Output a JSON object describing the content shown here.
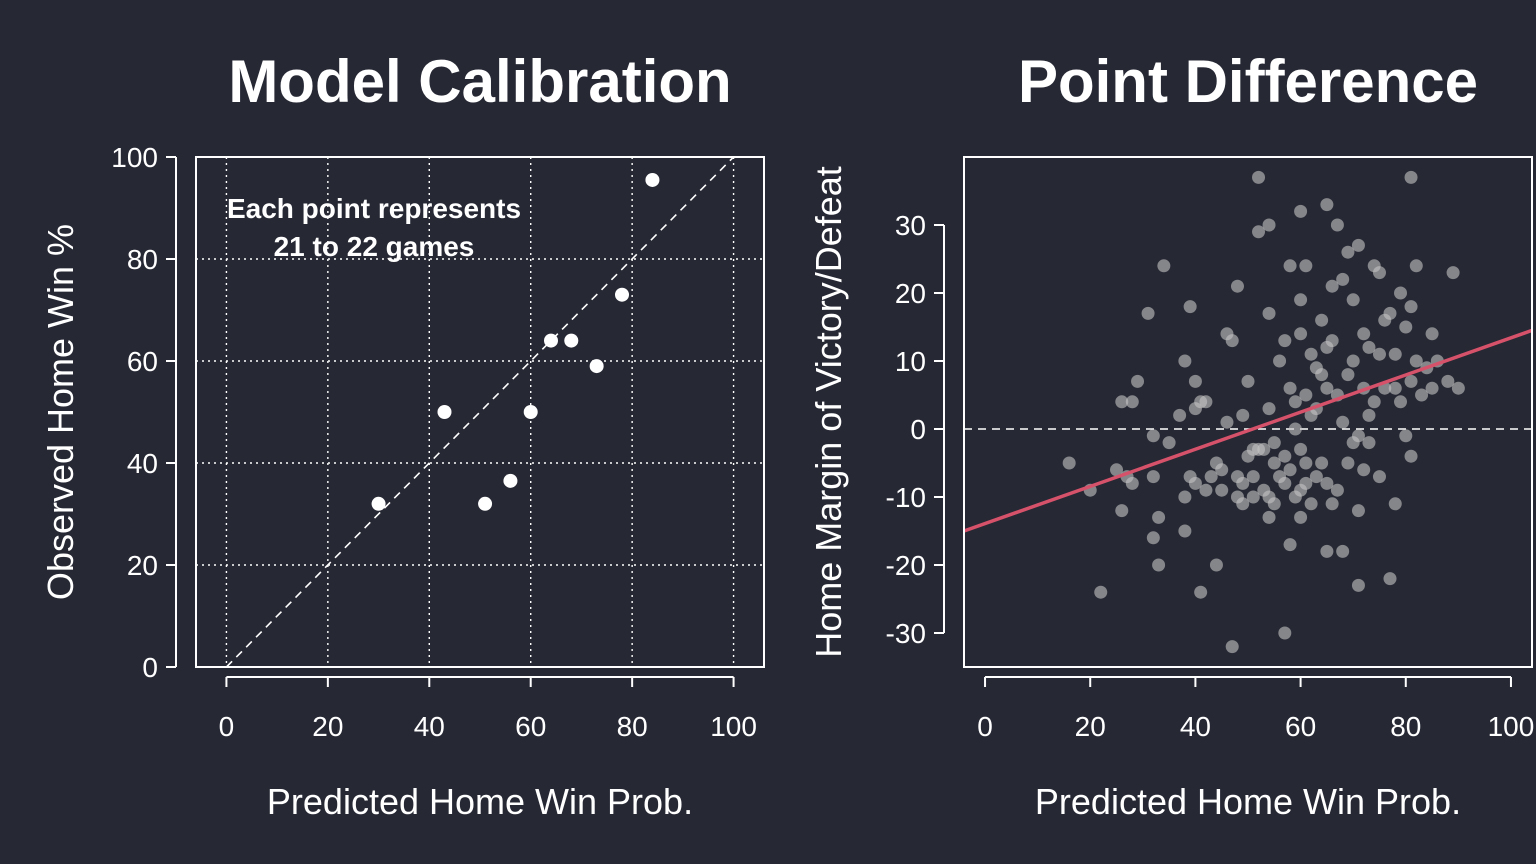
{
  "chart_data": [
    {
      "type": "scatter",
      "title": "Model Calibration",
      "xlabel": "Predicted Home Win Prob.",
      "ylabel": "Observed Home Win %",
      "xlim": [
        -6,
        106
      ],
      "ylim": [
        0,
        100
      ],
      "xticks": [
        0,
        20,
        40,
        60,
        80,
        100
      ],
      "yticks": [
        0,
        20,
        40,
        60,
        80,
        100
      ],
      "grid": "dotted",
      "reference_line": "y = x (dashed)",
      "annotation": [
        "Each point represents",
        "21 to 22 games"
      ],
      "point_color": "#ffffff",
      "points": [
        {
          "x": 30,
          "y": 32
        },
        {
          "x": 43,
          "y": 50
        },
        {
          "x": 51,
          "y": 32
        },
        {
          "x": 56,
          "y": 36.5
        },
        {
          "x": 60,
          "y": 50
        },
        {
          "x": 64,
          "y": 64
        },
        {
          "x": 68,
          "y": 64
        },
        {
          "x": 73,
          "y": 59
        },
        {
          "x": 78,
          "y": 73
        },
        {
          "x": 84,
          "y": 95.5
        }
      ]
    },
    {
      "type": "scatter",
      "title": "Point Difference",
      "xlabel": "Predicted Home Win Prob.",
      "ylabel": "Home Margin of Victory/Defeat",
      "xlim": [
        -4,
        104
      ],
      "ylim": [
        -35,
        40
      ],
      "xticks": [
        0,
        20,
        40,
        60,
        80,
        100
      ],
      "yticks": [
        -30,
        -20,
        -10,
        0,
        10,
        20,
        30
      ],
      "grid": "none",
      "zero_line": "dashed",
      "fit_line": {
        "color": "#d6526a",
        "start": [
          -4,
          -15
        ],
        "end": [
          104,
          14.5
        ]
      },
      "point_color": "#c4c4c4",
      "points": [
        {
          "x": 16,
          "y": -5
        },
        {
          "x": 20,
          "y": -9
        },
        {
          "x": 22,
          "y": -24
        },
        {
          "x": 25,
          "y": -6
        },
        {
          "x": 26,
          "y": 4
        },
        {
          "x": 26,
          "y": -12
        },
        {
          "x": 27,
          "y": -7
        },
        {
          "x": 28,
          "y": 4
        },
        {
          "x": 28,
          "y": -8
        },
        {
          "x": 29,
          "y": 7
        },
        {
          "x": 31,
          "y": 17
        },
        {
          "x": 32,
          "y": -1
        },
        {
          "x": 32,
          "y": -7
        },
        {
          "x": 32,
          "y": -16
        },
        {
          "x": 33,
          "y": -13
        },
        {
          "x": 33,
          "y": -20
        },
        {
          "x": 34,
          "y": 24
        },
        {
          "x": 35,
          "y": -2
        },
        {
          "x": 37,
          "y": 2
        },
        {
          "x": 38,
          "y": 10
        },
        {
          "x": 38,
          "y": -10
        },
        {
          "x": 38,
          "y": -15
        },
        {
          "x": 39,
          "y": 18
        },
        {
          "x": 39,
          "y": -7
        },
        {
          "x": 40,
          "y": 7
        },
        {
          "x": 40,
          "y": 3
        },
        {
          "x": 40,
          "y": -8
        },
        {
          "x": 41,
          "y": 4
        },
        {
          "x": 41,
          "y": -24
        },
        {
          "x": 42,
          "y": 4
        },
        {
          "x": 42,
          "y": -9
        },
        {
          "x": 43,
          "y": -7
        },
        {
          "x": 44,
          "y": -5
        },
        {
          "x": 44,
          "y": -20
        },
        {
          "x": 45,
          "y": -6
        },
        {
          "x": 45,
          "y": -9
        },
        {
          "x": 46,
          "y": 1
        },
        {
          "x": 46,
          "y": 14
        },
        {
          "x": 47,
          "y": 13
        },
        {
          "x": 47,
          "y": -32
        },
        {
          "x": 48,
          "y": 21
        },
        {
          "x": 48,
          "y": -7
        },
        {
          "x": 48,
          "y": -10
        },
        {
          "x": 49,
          "y": 2
        },
        {
          "x": 49,
          "y": -11
        },
        {
          "x": 49,
          "y": -8
        },
        {
          "x": 50,
          "y": 7
        },
        {
          "x": 50,
          "y": -4
        },
        {
          "x": 51,
          "y": -3
        },
        {
          "x": 51,
          "y": -7
        },
        {
          "x": 51,
          "y": -10
        },
        {
          "x": 52,
          "y": 37
        },
        {
          "x": 52,
          "y": 29
        },
        {
          "x": 52,
          "y": -3
        },
        {
          "x": 53,
          "y": -3
        },
        {
          "x": 53,
          "y": -9
        },
        {
          "x": 54,
          "y": 30
        },
        {
          "x": 54,
          "y": 17
        },
        {
          "x": 54,
          "y": 3
        },
        {
          "x": 54,
          "y": -10
        },
        {
          "x": 54,
          "y": -13
        },
        {
          "x": 55,
          "y": -5
        },
        {
          "x": 55,
          "y": -2
        },
        {
          "x": 55,
          "y": -11
        },
        {
          "x": 56,
          "y": 10
        },
        {
          "x": 56,
          "y": -7
        },
        {
          "x": 57,
          "y": 13
        },
        {
          "x": 57,
          "y": -4
        },
        {
          "x": 57,
          "y": -8
        },
        {
          "x": 57,
          "y": -30
        },
        {
          "x": 58,
          "y": 24
        },
        {
          "x": 58,
          "y": 6
        },
        {
          "x": 58,
          "y": -6
        },
        {
          "x": 58,
          "y": -17
        },
        {
          "x": 59,
          "y": 0
        },
        {
          "x": 59,
          "y": 4
        },
        {
          "x": 59,
          "y": -10
        },
        {
          "x": 60,
          "y": 32
        },
        {
          "x": 60,
          "y": 19
        },
        {
          "x": 60,
          "y": 14
        },
        {
          "x": 60,
          "y": -3
        },
        {
          "x": 60,
          "y": -9
        },
        {
          "x": 60,
          "y": -13
        },
        {
          "x": 61,
          "y": 24
        },
        {
          "x": 61,
          "y": 5
        },
        {
          "x": 61,
          "y": -5
        },
        {
          "x": 61,
          "y": -8
        },
        {
          "x": 62,
          "y": 11
        },
        {
          "x": 62,
          "y": 2
        },
        {
          "x": 62,
          "y": -11
        },
        {
          "x": 63,
          "y": 9
        },
        {
          "x": 63,
          "y": 3
        },
        {
          "x": 63,
          "y": -7
        },
        {
          "x": 64,
          "y": 16
        },
        {
          "x": 64,
          "y": 8
        },
        {
          "x": 64,
          "y": -5
        },
        {
          "x": 65,
          "y": 33
        },
        {
          "x": 65,
          "y": 12
        },
        {
          "x": 65,
          "y": 6
        },
        {
          "x": 65,
          "y": -8
        },
        {
          "x": 65,
          "y": -18
        },
        {
          "x": 66,
          "y": 21
        },
        {
          "x": 66,
          "y": 13
        },
        {
          "x": 66,
          "y": -11
        },
        {
          "x": 67,
          "y": 30
        },
        {
          "x": 67,
          "y": 5
        },
        {
          "x": 67,
          "y": -9
        },
        {
          "x": 68,
          "y": 22
        },
        {
          "x": 68,
          "y": 1
        },
        {
          "x": 68,
          "y": -18
        },
        {
          "x": 69,
          "y": 26
        },
        {
          "x": 69,
          "y": 8
        },
        {
          "x": 69,
          "y": -5
        },
        {
          "x": 70,
          "y": 19
        },
        {
          "x": 70,
          "y": 10
        },
        {
          "x": 70,
          "y": -2
        },
        {
          "x": 71,
          "y": 27
        },
        {
          "x": 71,
          "y": -1
        },
        {
          "x": 71,
          "y": -12
        },
        {
          "x": 71,
          "y": -23
        },
        {
          "x": 72,
          "y": 14
        },
        {
          "x": 72,
          "y": 6
        },
        {
          "x": 72,
          "y": -6
        },
        {
          "x": 73,
          "y": 12
        },
        {
          "x": 73,
          "y": 2
        },
        {
          "x": 73,
          "y": -2
        },
        {
          "x": 74,
          "y": 24
        },
        {
          "x": 74,
          "y": 4
        },
        {
          "x": 75,
          "y": 23
        },
        {
          "x": 75,
          "y": 11
        },
        {
          "x": 75,
          "y": -7
        },
        {
          "x": 76,
          "y": 16
        },
        {
          "x": 76,
          "y": 6
        },
        {
          "x": 77,
          "y": 17
        },
        {
          "x": 77,
          "y": -22
        },
        {
          "x": 78,
          "y": 11
        },
        {
          "x": 78,
          "y": 6
        },
        {
          "x": 78,
          "y": -11
        },
        {
          "x": 79,
          "y": 20
        },
        {
          "x": 79,
          "y": 4
        },
        {
          "x": 80,
          "y": 15
        },
        {
          "x": 80,
          "y": -1
        },
        {
          "x": 81,
          "y": 37
        },
        {
          "x": 81,
          "y": 18
        },
        {
          "x": 81,
          "y": 7
        },
        {
          "x": 81,
          "y": -4
        },
        {
          "x": 82,
          "y": 24
        },
        {
          "x": 82,
          "y": 10
        },
        {
          "x": 83,
          "y": 5
        },
        {
          "x": 84,
          "y": 9
        },
        {
          "x": 85,
          "y": 14
        },
        {
          "x": 85,
          "y": 6
        },
        {
          "x": 86,
          "y": 10
        },
        {
          "x": 88,
          "y": 7
        },
        {
          "x": 89,
          "y": 23
        },
        {
          "x": 90,
          "y": 6
        }
      ]
    }
  ]
}
